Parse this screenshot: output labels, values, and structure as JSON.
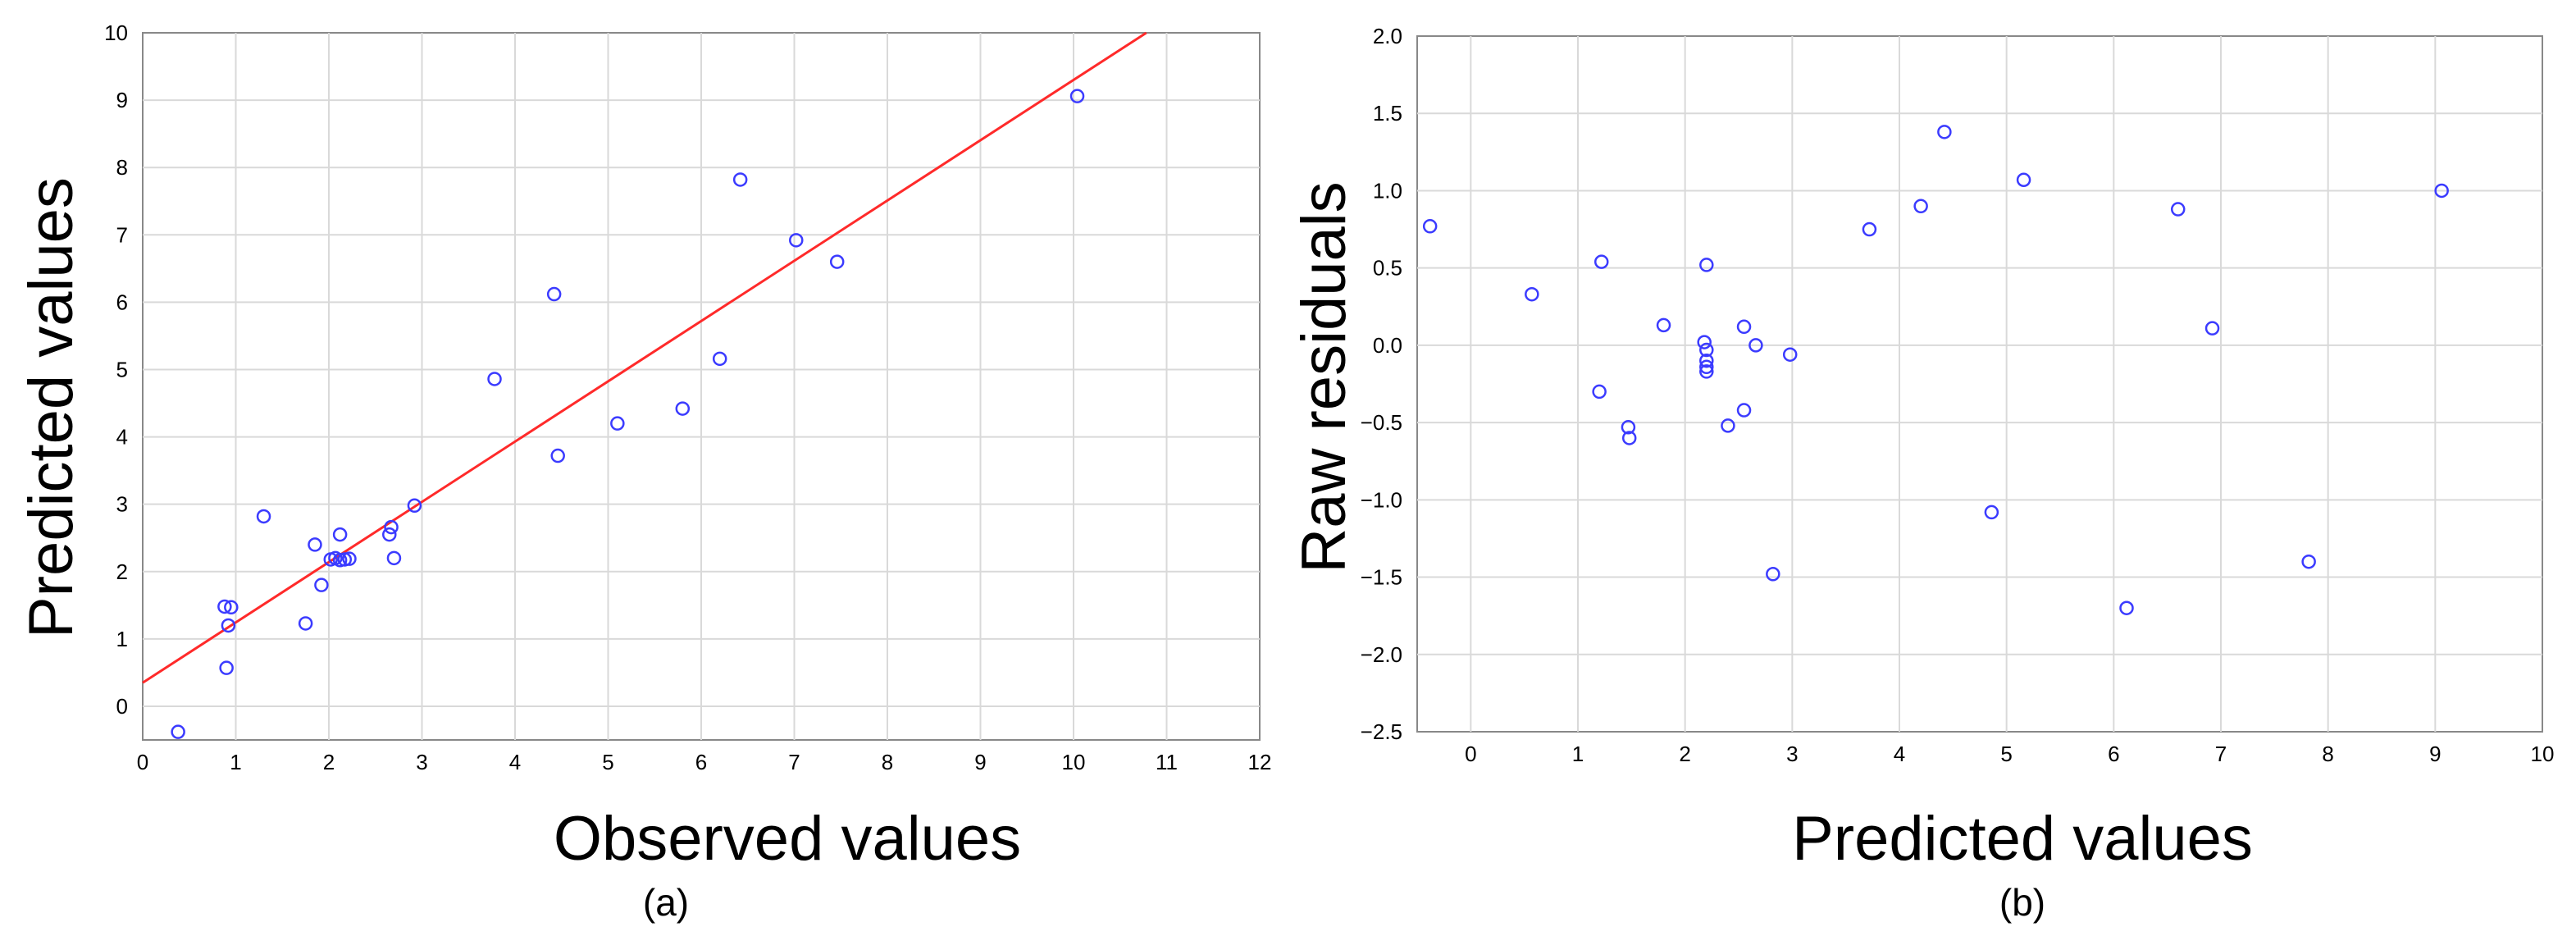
{
  "colors": {
    "point": "#3b3bff",
    "fit_line": "#ff2a2a",
    "grid": "#d9d9d9",
    "frame": "#888888",
    "text": "#000000"
  },
  "chart_data": [
    {
      "panel_label": "(a)",
      "type": "scatter",
      "title": "",
      "xlabel": "Observed values",
      "ylabel": "Predicted values",
      "xlim": [
        0,
        12
      ],
      "ylim": [
        -0.5,
        10
      ],
      "xticks": [
        "0",
        "1",
        "2",
        "3",
        "4",
        "5",
        "6",
        "7",
        "8",
        "9",
        "10",
        "11",
        "12"
      ],
      "yticks": [
        "0",
        "1",
        "2",
        "3",
        "4",
        "5",
        "6",
        "7",
        "8",
        "9",
        "10"
      ],
      "grid": true,
      "fit_line": {
        "intercept": 0.35,
        "slope": 0.895
      },
      "points": [
        {
          "x": 0.38,
          "y": -0.38
        },
        {
          "x": 0.9,
          "y": 0.57
        },
        {
          "x": 0.92,
          "y": 1.2
        },
        {
          "x": 0.88,
          "y": 1.48
        },
        {
          "x": 0.95,
          "y": 1.47
        },
        {
          "x": 1.3,
          "y": 2.82
        },
        {
          "x": 1.75,
          "y": 1.23
        },
        {
          "x": 1.85,
          "y": 2.4
        },
        {
          "x": 1.92,
          "y": 1.8
        },
        {
          "x": 2.02,
          "y": 2.18
        },
        {
          "x": 2.07,
          "y": 2.2
        },
        {
          "x": 2.12,
          "y": 2.17
        },
        {
          "x": 2.17,
          "y": 2.18
        },
        {
          "x": 2.22,
          "y": 2.19
        },
        {
          "x": 2.12,
          "y": 2.55
        },
        {
          "x": 2.65,
          "y": 2.55
        },
        {
          "x": 2.67,
          "y": 2.66
        },
        {
          "x": 2.7,
          "y": 2.2
        },
        {
          "x": 2.92,
          "y": 2.98
        },
        {
          "x": 3.78,
          "y": 4.86
        },
        {
          "x": 4.42,
          "y": 6.12
        },
        {
          "x": 4.46,
          "y": 3.72
        },
        {
          "x": 5.1,
          "y": 4.2
        },
        {
          "x": 5.8,
          "y": 4.42
        },
        {
          "x": 6.2,
          "y": 5.16
        },
        {
          "x": 6.42,
          "y": 7.82
        },
        {
          "x": 7.02,
          "y": 6.92
        },
        {
          "x": 7.46,
          "y": 6.6
        },
        {
          "x": 10.04,
          "y": 9.06
        }
      ]
    },
    {
      "panel_label": "(b)",
      "type": "scatter",
      "title": "",
      "xlabel": "Predicted values",
      "ylabel": "Raw residuals",
      "xlim": [
        -0.5,
        10
      ],
      "ylim": [
        -2.5,
        2.0
      ],
      "xticks": [
        "0",
        "1",
        "2",
        "3",
        "4",
        "5",
        "6",
        "7",
        "8",
        "9",
        "10"
      ],
      "yticks": [
        "2.0",
        "1.5",
        "1.0",
        "0.5",
        "0.0",
        "−0.5",
        "−1.0",
        "−1.5",
        "−2.0",
        "−2.5"
      ],
      "grid": true,
      "points": [
        {
          "x": -0.38,
          "y": 0.77
        },
        {
          "x": 0.57,
          "y": 0.33
        },
        {
          "x": 1.2,
          "y": -0.3
        },
        {
          "x": 1.22,
          "y": 0.54
        },
        {
          "x": 1.47,
          "y": -0.53
        },
        {
          "x": 1.48,
          "y": -0.6
        },
        {
          "x": 1.8,
          "y": 0.13
        },
        {
          "x": 2.18,
          "y": 0.02
        },
        {
          "x": 2.2,
          "y": 0.52
        },
        {
          "x": 2.2,
          "y": -0.03
        },
        {
          "x": 2.2,
          "y": -0.1
        },
        {
          "x": 2.2,
          "y": -0.14
        },
        {
          "x": 2.2,
          "y": -0.17
        },
        {
          "x": 2.4,
          "y": -0.52
        },
        {
          "x": 2.55,
          "y": 0.12
        },
        {
          "x": 2.55,
          "y": -0.42
        },
        {
          "x": 2.66,
          "y": 0.0
        },
        {
          "x": 2.82,
          "y": -1.48
        },
        {
          "x": 2.98,
          "y": -0.06
        },
        {
          "x": 3.72,
          "y": 0.75
        },
        {
          "x": 4.2,
          "y": 0.9
        },
        {
          "x": 4.42,
          "y": 1.38
        },
        {
          "x": 4.86,
          "y": -1.08
        },
        {
          "x": 5.16,
          "y": 1.07
        },
        {
          "x": 6.12,
          "y": -1.7
        },
        {
          "x": 6.6,
          "y": 0.88
        },
        {
          "x": 6.92,
          "y": 0.11
        },
        {
          "x": 7.82,
          "y": -1.4
        },
        {
          "x": 9.06,
          "y": 1.0
        }
      ]
    }
  ]
}
